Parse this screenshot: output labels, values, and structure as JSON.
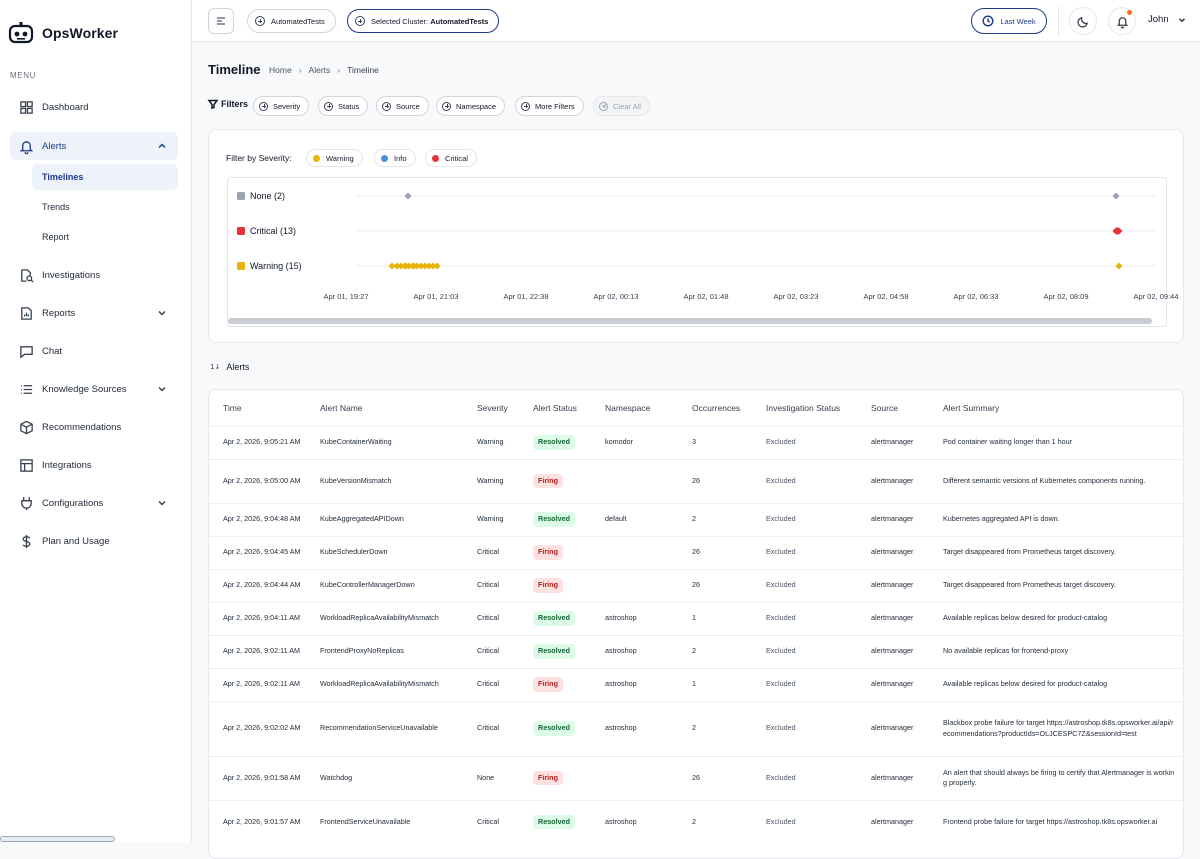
{
  "brand": {
    "name": "OpsWorker"
  },
  "sidebar": {
    "menu_label": "MENU",
    "items": [
      {
        "label": "Dashboard",
        "icon": "grid-icon"
      },
      {
        "label": "Alerts",
        "icon": "bell-icon",
        "expanded": true
      },
      {
        "label": "Investigations",
        "icon": "search-doc-icon"
      },
      {
        "label": "Reports",
        "icon": "report-icon",
        "has_chevron": true
      },
      {
        "label": "Chat",
        "icon": "chat-icon"
      },
      {
        "label": "Knowledge Sources",
        "icon": "list-icon",
        "has_chevron": true
      },
      {
        "label": "Recommendations",
        "icon": "cube-icon"
      },
      {
        "label": "Integrations",
        "icon": "table-icon"
      },
      {
        "label": "Configurations",
        "icon": "plug-icon",
        "has_chevron": true
      },
      {
        "label": "Plan and Usage",
        "icon": "dollar-icon"
      }
    ],
    "alerts_sub": [
      "Timelines",
      "Trends",
      "Report"
    ]
  },
  "header": {
    "project_pill": "AutomatedTests",
    "cluster_pill_prefix": "Selected Cluster: ",
    "cluster_pill_value": "AutomatedTests",
    "time_range": "Last Week",
    "user_name": "John"
  },
  "page": {
    "title": "Timeline",
    "breadcrumb": [
      "Home",
      "Alerts",
      "Timeline"
    ]
  },
  "filters": {
    "label": "Filters",
    "chips": [
      "Severity",
      "Status",
      "Source",
      "Namespace",
      "More Filters"
    ],
    "clear": "Clear All"
  },
  "timeline": {
    "filter_label": "Filter by Severity:",
    "severity_chips": [
      {
        "label": "Warning",
        "color": "#eab308"
      },
      {
        "label": "Info",
        "color": "#4a90d9"
      },
      {
        "label": "Critical",
        "color": "#e5343a"
      }
    ],
    "rows": [
      {
        "label": "None (2)",
        "color": "#9aa3b2"
      },
      {
        "label": "Critical (13)",
        "color": "#e5343a"
      },
      {
        "label": "Warning (15)",
        "color": "#eab308"
      }
    ],
    "ticks": [
      "Apr 01, 19:27",
      "Apr 01, 21:03",
      "Apr 01, 22:38",
      "Apr 02, 00:13",
      "Apr 02, 01:48",
      "Apr 02, 03:23",
      "Apr 02, 04:58",
      "Apr 02, 06:33",
      "Apr 02, 08:09",
      "Apr 02, 09:44"
    ]
  },
  "alerts": {
    "title": "Alerts",
    "columns": [
      "Time",
      "Alert Name",
      "Severity",
      "Alert Status",
      "Namespace",
      "Occurrences",
      "Investigation Status",
      "Source",
      "Alert Summary"
    ],
    "rows": [
      {
        "time": "Apr 2, 2026, 9:05:21 AM",
        "name": "KubeContainerWaiting",
        "severity": "Warning",
        "status": "Resolved",
        "namespace": "komodor",
        "occurrences": "3",
        "investigation": "Excluded",
        "source": "alertmanager",
        "summary": "Pod container waiting longer than 1 hour"
      },
      {
        "time": "Apr 2, 2026, 9:05:00 AM",
        "name": "KubeVersionMismatch",
        "severity": "Warning",
        "status": "Firing",
        "namespace": "",
        "occurrences": "26",
        "investigation": "Excluded",
        "source": "alertmanager",
        "summary": "Different semantic versions of Kubernetes components running."
      },
      {
        "time": "Apr 2, 2026, 9:04:48 AM",
        "name": "KubeAggregatedAPIDown",
        "severity": "Warning",
        "status": "Resolved",
        "namespace": "default",
        "occurrences": "2",
        "investigation": "Excluded",
        "source": "alertmanager",
        "summary": "Kubernetes aggregated API is down."
      },
      {
        "time": "Apr 2, 2026, 9:04:45 AM",
        "name": "KubeSchedulerDown",
        "severity": "Critical",
        "status": "Firing",
        "namespace": "",
        "occurrences": "26",
        "investigation": "Excluded",
        "source": "alertmanager",
        "summary": "Target disappeared from Prometheus target discovery."
      },
      {
        "time": "Apr 2, 2026, 9:04:44 AM",
        "name": "KubeControllerManagerDown",
        "severity": "Critical",
        "status": "Firing",
        "namespace": "",
        "occurrences": "26",
        "investigation": "Excluded",
        "source": "alertmanager",
        "summary": "Target disappeared from Prometheus target discovery."
      },
      {
        "time": "Apr 2, 2026, 9:04:11 AM",
        "name": "WorkloadReplicaAvailabilityMismatch",
        "severity": "Critical",
        "status": "Resolved",
        "namespace": "astroshop",
        "occurrences": "1",
        "investigation": "Excluded",
        "source": "alertmanager",
        "summary": "Available replicas below desired for product-catalog"
      },
      {
        "time": "Apr 2, 2026, 9:02:11 AM",
        "name": "FrontendProxyNoReplicas",
        "severity": "Critical",
        "status": "Resolved",
        "namespace": "astroshop",
        "occurrences": "2",
        "investigation": "Excluded",
        "source": "alertmanager",
        "summary": "No available replicas for frontend-proxy"
      },
      {
        "time": "Apr 2, 2026, 9:02:11 AM",
        "name": "WorkloadReplicaAvailabilityMismatch",
        "severity": "Critical",
        "status": "Firing",
        "namespace": "astroshop",
        "occurrences": "1",
        "investigation": "Excluded",
        "source": "alertmanager",
        "summary": "Available replicas below desired for product-catalog"
      },
      {
        "time": "Apr 2, 2026, 9:02:02 AM",
        "name": "RecommendationServiceUnavailable",
        "severity": "Critical",
        "status": "Resolved",
        "namespace": "astroshop",
        "occurrences": "2",
        "investigation": "Excluded",
        "source": "alertmanager",
        "summary": "Blackbox probe failure for target https://astroshop.tk8s.opsworker.ai/api/recommendations?productIds=OLJCESPC7Z&sessionId=test"
      },
      {
        "time": "Apr 2, 2026, 9:01:58 AM",
        "name": "Watchdog",
        "severity": "None",
        "status": "Firing",
        "namespace": "",
        "occurrences": "26",
        "investigation": "Excluded",
        "source": "alertmanager",
        "summary": "An alert that should always be firing to certify that Alertmanager is working properly."
      },
      {
        "time": "Apr 2, 2026, 9:01:57 AM",
        "name": "FrontendServiceUnavailable",
        "severity": "Critical",
        "status": "Resolved",
        "namespace": "astroshop",
        "occurrences": "2",
        "investigation": "Excluded",
        "source": "alertmanager",
        "summary": "Frontend probe failure for target https://astroshop.tk8s.opsworker.ai"
      }
    ]
  },
  "colors": {
    "accent": "#1e3a8a",
    "resolved": "#166534",
    "firing": "#b91c1c"
  }
}
